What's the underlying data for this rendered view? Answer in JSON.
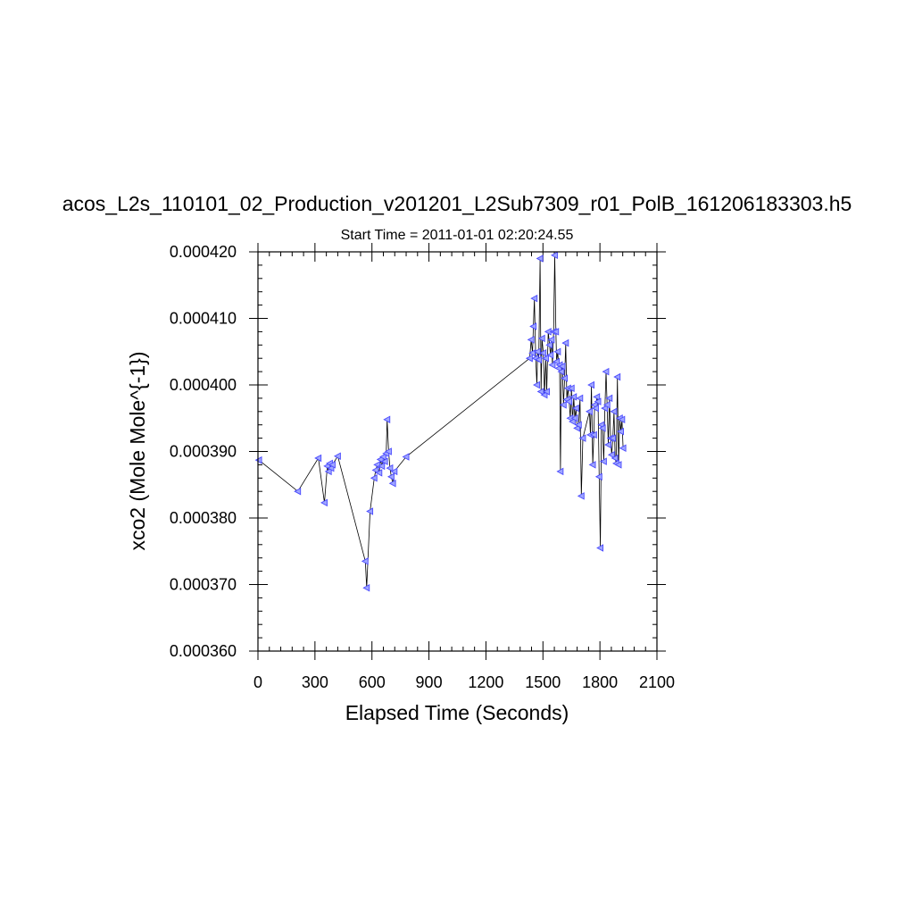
{
  "chart_data": {
    "type": "scatter",
    "title": "acos_L2s_110101_02_Production_v201201_L2Sub7309_r01_PolB_161206183303.h5",
    "subtitle": "Start Time = 2011-01-01 02:20:24.55",
    "xlabel": "Elapsed Time (Seconds)",
    "ylabel": "xco2 (Mole Mole^{-1})",
    "xlim": [
      0,
      2100
    ],
    "ylim": [
      0.00036,
      0.00042
    ],
    "x_ticks": [
      "0",
      "300",
      "600",
      "900",
      "1200",
      "1500",
      "1800",
      "2100"
    ],
    "y_ticks": [
      "0.000360",
      "0.000370",
      "0.000380",
      "0.000390",
      "0.000400",
      "0.000410",
      "0.000420"
    ],
    "grid": false,
    "legend": "none",
    "marker": "left-triangle",
    "marker_color": "#4a4aff",
    "line_color": "#000000",
    "series": [
      {
        "x": [
          5,
          210,
          318,
          350,
          365,
          372,
          378,
          385,
          392,
          420,
          565,
          572,
          590,
          612,
          620,
          628,
          638,
          645,
          652,
          660,
          668,
          675,
          680,
          688,
          695,
          702,
          710,
          718,
          780,
          1430,
          1438,
          1445,
          1450,
          1455,
          1462,
          1468,
          1472,
          1478,
          1485,
          1490,
          1495,
          1502,
          1508,
          1515,
          1520,
          1528,
          1535,
          1540,
          1545,
          1550,
          1556,
          1562,
          1568,
          1572,
          1578,
          1583,
          1588,
          1592,
          1597,
          1602,
          1608,
          1614,
          1620,
          1626,
          1632,
          1638,
          1644,
          1650,
          1656,
          1662,
          1668,
          1674,
          1680,
          1688,
          1695,
          1702,
          1710,
          1745,
          1750,
          1755,
          1762,
          1768,
          1772,
          1778,
          1784,
          1790,
          1796,
          1802,
          1808,
          1814,
          1820,
          1826,
          1832,
          1838,
          1844,
          1850,
          1856,
          1862,
          1868,
          1874,
          1880,
          1886,
          1892,
          1898,
          1904,
          1910,
          1916,
          1922
        ],
        "y": [
          0.0003887,
          0.000384,
          0.000389,
          0.0003823,
          0.0003878,
          0.000387,
          0.0003882,
          0.0003875,
          0.000388,
          0.0003893,
          0.0003735,
          0.0003695,
          0.000381,
          0.000386,
          0.0003872,
          0.000388,
          0.0003868,
          0.0003888,
          0.0003878,
          0.0003892,
          0.0003885,
          0.0003897,
          0.0003948,
          0.00039,
          0.0003875,
          0.0003862,
          0.0003852,
          0.000387,
          0.0003892,
          0.000404,
          0.0004068,
          0.0004048,
          0.0004088,
          0.000413,
          0.000404,
          0.0004,
          0.000405,
          0.0004038,
          0.000419,
          0.000399,
          0.000407,
          0.0004048,
          0.0003985,
          0.000404,
          0.000399,
          0.000408,
          0.000406,
          0.0004045,
          0.0004068,
          0.000403,
          0.000408,
          0.0004195,
          0.000408,
          0.0004035,
          0.000405,
          0.0004025,
          0.000403,
          0.000387,
          0.000402,
          0.0004028,
          0.000397,
          0.000401,
          0.0004063,
          0.0003978,
          0.0003995,
          0.0003975,
          0.000395,
          0.0003995,
          0.0003945,
          0.0003982,
          0.000395,
          0.0003965,
          0.0003935,
          0.000394,
          0.000398,
          0.0003833,
          0.000392,
          0.000396,
          0.0003925,
          0.0004,
          0.000388,
          0.0003925,
          0.000397,
          0.0003965,
          0.0003982,
          0.0003975,
          0.0003862,
          0.0003755,
          0.000394,
          0.0003935,
          0.0003885,
          0.0003965,
          0.000402,
          0.000397,
          0.000391,
          0.000398,
          0.000392,
          0.0003895,
          0.000392,
          0.000396,
          0.000389,
          0.0003882,
          0.0004012,
          0.000388,
          0.000395,
          0.000393,
          0.0003948,
          0.0003905
        ]
      }
    ]
  }
}
